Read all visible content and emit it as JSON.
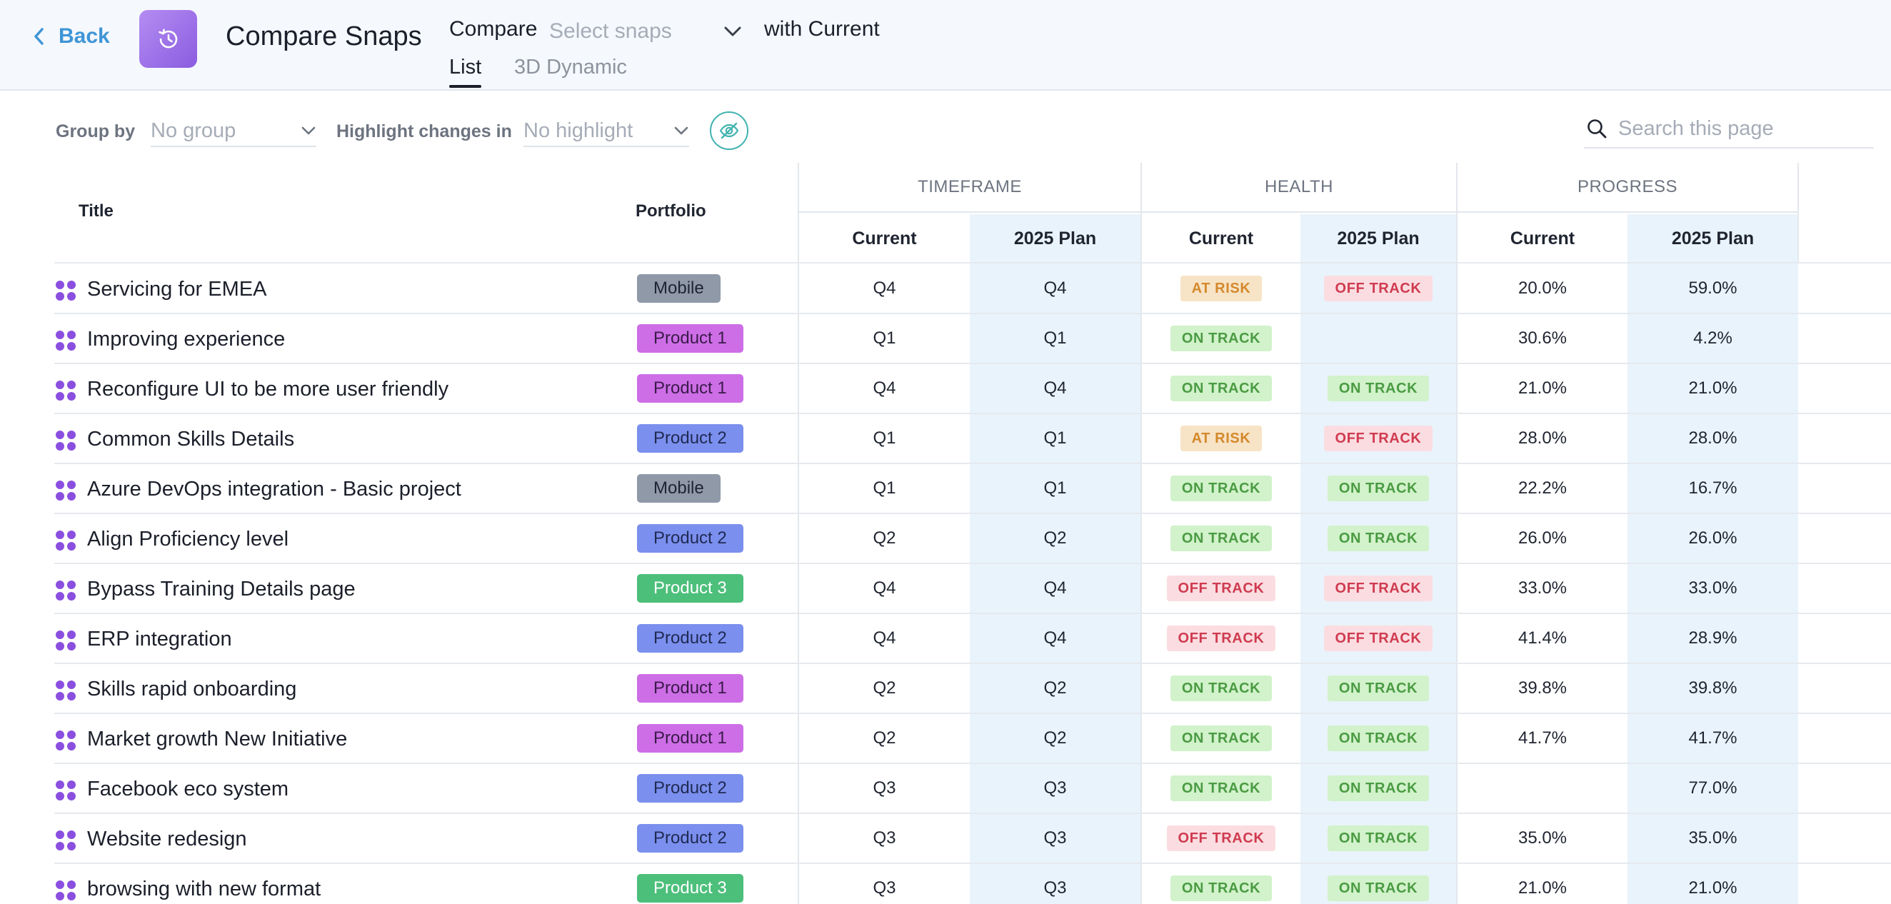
{
  "header": {
    "back_label": "Back",
    "title": "Compare Snaps",
    "compare_label": "Compare",
    "select_placeholder": "Select snaps",
    "with_current": "with Current",
    "tabs": [
      {
        "label": "List",
        "active": true
      },
      {
        "label": "3D Dynamic",
        "active": false
      }
    ]
  },
  "toolbar": {
    "group_by_label": "Group by",
    "group_by_value": "No group",
    "highlight_label": "Highlight changes in",
    "highlight_value": "No highlight",
    "search_placeholder": "Search this page"
  },
  "table": {
    "col_title": "Title",
    "col_portfolio": "Portfolio",
    "groups": [
      "TIMEFRAME",
      "HEALTH",
      "PROGRESS"
    ],
    "sub_current": "Current",
    "sub_plan": "2025 Plan",
    "rows": [
      {
        "title": "Servicing for EMEA",
        "portfolio": "Mobile",
        "tf_current": "Q4",
        "tf_plan": "Q4",
        "health_current": "AT RISK",
        "health_plan": "OFF TRACK",
        "progress_current": "20.0%",
        "progress_plan": "59.0%"
      },
      {
        "title": "Improving experience",
        "portfolio": "Product 1",
        "tf_current": "Q1",
        "tf_plan": "Q1",
        "health_current": "ON TRACK",
        "health_plan": "",
        "progress_current": "30.6%",
        "progress_plan": "4.2%"
      },
      {
        "title": "Reconfigure UI to be more user friendly",
        "portfolio": "Product 1",
        "tf_current": "Q4",
        "tf_plan": "Q4",
        "health_current": "ON TRACK",
        "health_plan": "ON TRACK",
        "progress_current": "21.0%",
        "progress_plan": "21.0%"
      },
      {
        "title": "Common Skills Details",
        "portfolio": "Product 2",
        "tf_current": "Q1",
        "tf_plan": "Q1",
        "health_current": "AT RISK",
        "health_plan": "OFF TRACK",
        "progress_current": "28.0%",
        "progress_plan": "28.0%"
      },
      {
        "title": "Azure DevOps integration - Basic project",
        "portfolio": "Mobile",
        "tf_current": "Q1",
        "tf_plan": "Q1",
        "health_current": "ON TRACK",
        "health_plan": "ON TRACK",
        "progress_current": "22.2%",
        "progress_plan": "16.7%"
      },
      {
        "title": "Align Proficiency level",
        "portfolio": "Product 2",
        "tf_current": "Q2",
        "tf_plan": "Q2",
        "health_current": "ON TRACK",
        "health_plan": "ON TRACK",
        "progress_current": "26.0%",
        "progress_plan": "26.0%"
      },
      {
        "title": "Bypass Training Details page",
        "portfolio": "Product 3",
        "tf_current": "Q4",
        "tf_plan": "Q4",
        "health_current": "OFF TRACK",
        "health_plan": "OFF TRACK",
        "progress_current": "33.0%",
        "progress_plan": "33.0%"
      },
      {
        "title": "ERP integration",
        "portfolio": "Product 2",
        "tf_current": "Q4",
        "tf_plan": "Q4",
        "health_current": "OFF TRACK",
        "health_plan": "OFF TRACK",
        "progress_current": "41.4%",
        "progress_plan": "28.9%"
      },
      {
        "title": "Skills rapid onboarding",
        "portfolio": "Product 1",
        "tf_current": "Q2",
        "tf_plan": "Q2",
        "health_current": "ON TRACK",
        "health_plan": "ON TRACK",
        "progress_current": "39.8%",
        "progress_plan": "39.8%"
      },
      {
        "title": "Market growth New Initiative",
        "portfolio": "Product 1",
        "tf_current": "Q2",
        "tf_plan": "Q2",
        "health_current": "ON TRACK",
        "health_plan": "ON TRACK",
        "progress_current": "41.7%",
        "progress_plan": "41.7%"
      },
      {
        "title": "Facebook eco system",
        "portfolio": "Product 2",
        "tf_current": "Q3",
        "tf_plan": "Q3",
        "health_current": "ON TRACK",
        "health_plan": "ON TRACK",
        "progress_current": "",
        "progress_plan": "77.0%"
      },
      {
        "title": "Website redesign",
        "portfolio": "Product 2",
        "tf_current": "Q3",
        "tf_plan": "Q3",
        "health_current": "OFF TRACK",
        "health_plan": "ON TRACK",
        "progress_current": "35.0%",
        "progress_plan": "35.0%"
      },
      {
        "title": "browsing with new format",
        "portfolio": "Product 3",
        "tf_current": "Q3",
        "tf_plan": "Q3",
        "health_current": "ON TRACK",
        "health_plan": "ON TRACK",
        "progress_current": "21.0%",
        "progress_plan": "21.0%"
      }
    ]
  },
  "colors": {
    "accent": "#3f95d6",
    "app_icon": "#9a6ce6",
    "plan_column_bg": "#e9f3fb",
    "mobile": "#8f99a8",
    "product_1": "#cd6ee6",
    "product_2": "#7b8fee",
    "product_3": "#4cbf7b",
    "at_risk": "#d4892c",
    "off_track": "#cf3b50",
    "on_track": "#4a9b43"
  },
  "icons": {
    "back": "chevron-left-icon",
    "app": "history-icon",
    "dropdown": "chevron-down-icon",
    "visibility": "eye-off-icon",
    "search": "search-icon",
    "drag": "drag-handle-icon"
  }
}
